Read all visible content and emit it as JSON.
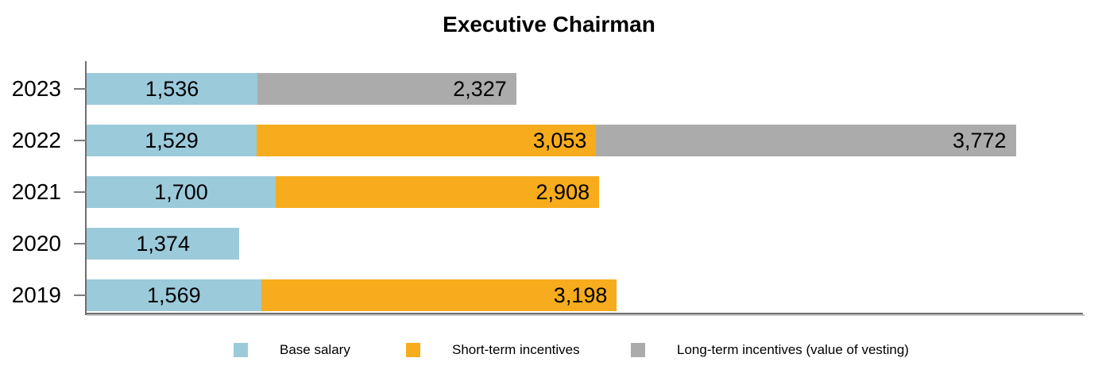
{
  "chart_data": {
    "type": "bar",
    "orientation": "horizontal",
    "stacked": true,
    "title": "Executive Chairman",
    "categories": [
      "2023",
      "2022",
      "2021",
      "2020",
      "2019"
    ],
    "series": [
      {
        "name": "Base salary",
        "key": "base-salary",
        "color": "#9BCADB",
        "values": [
          1536,
          1529,
          1700,
          1374,
          1569
        ]
      },
      {
        "name": "Short-term incentives",
        "key": "short-term-incentives",
        "color": "#F6AC1D",
        "values": [
          0,
          3053,
          2908,
          0,
          3198
        ]
      },
      {
        "name": "Long-term incentives (value of vesting)",
        "key": "long-term-incentives",
        "color": "#ABABAB",
        "values": [
          2327,
          3772,
          0,
          0,
          0
        ]
      }
    ],
    "xlabel": "",
    "ylabel": "",
    "xlim": [
      0,
      9000
    ],
    "grid": false,
    "legend_position": "bottom",
    "value_label_format": "thousands-comma",
    "axis_color": "#6E6E6E",
    "tick_color": "#7C7C7C",
    "text_color": "#000000",
    "background_color": "#FFFFFF"
  }
}
